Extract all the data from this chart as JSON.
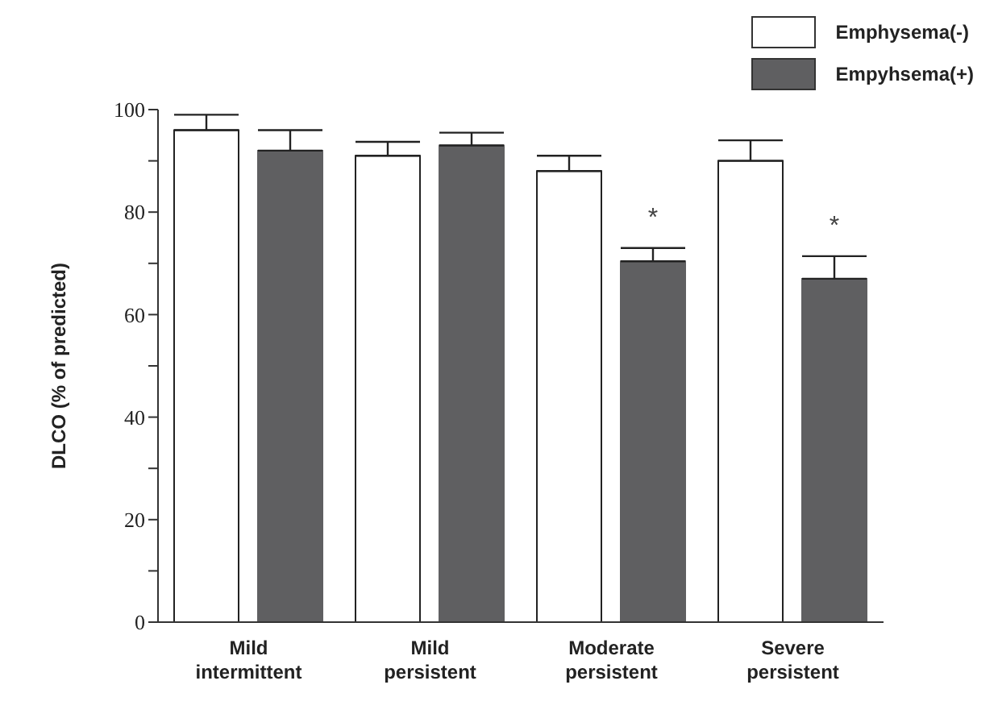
{
  "chart_data": {
    "type": "bar",
    "ylabel": "DLCO (% of predicted)",
    "categories": [
      "Mild intermittent",
      "Mild persistent",
      "Moderate persistent",
      "Severe persistent"
    ],
    "series": [
      {
        "name": "Emphysema(-)",
        "color": "#ffffff",
        "values": [
          96,
          91,
          88,
          90
        ],
        "errors": [
          3,
          2.7,
          3,
          4
        ]
      },
      {
        "name": "Empyhsema(+)",
        "color": "#5f5f61",
        "values": [
          92,
          93,
          70.4,
          67
        ],
        "errors": [
          4,
          2.5,
          2.6,
          4.4
        ],
        "value_labels": [
          null,
          null,
          "*",
          "*"
        ]
      }
    ],
    "ylim": [
      0,
      100
    ],
    "yticks": [
      0,
      {
        "value": 10,
        "label": null
      },
      20,
      {
        "value": 30,
        "label": null
      },
      40,
      {
        "value": 50,
        "label": null
      },
      60,
      {
        "value": 70,
        "label": null
      },
      80,
      {
        "value": 90,
        "label": null
      },
      100
    ],
    "legend": "top right",
    "grid": false
  }
}
